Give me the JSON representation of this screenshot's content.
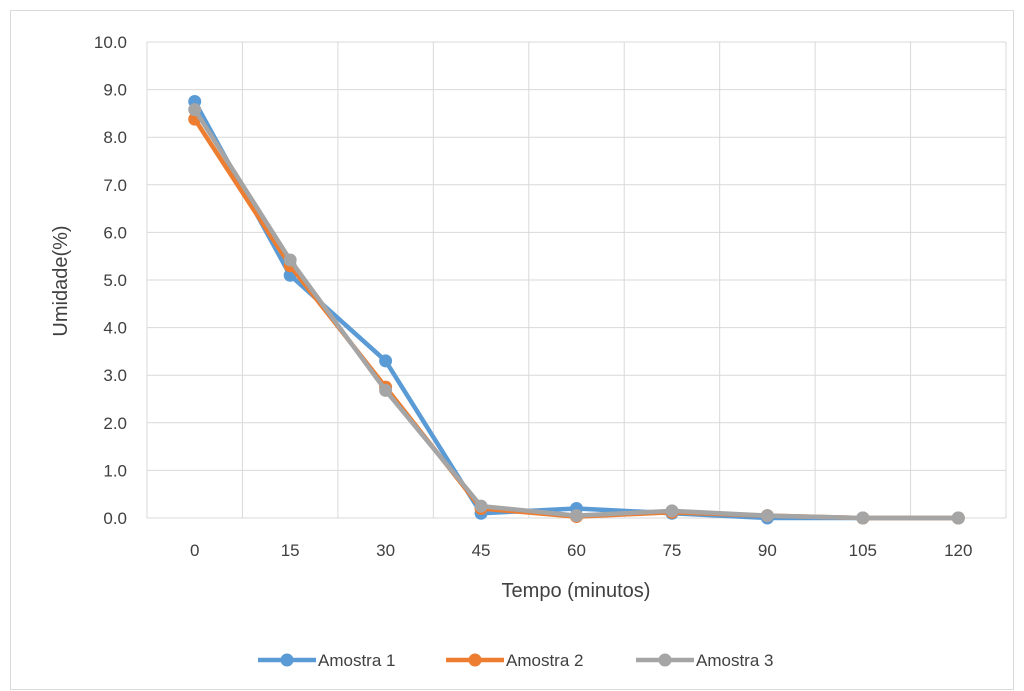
{
  "chart_data": {
    "type": "line",
    "title": "",
    "xlabel": "Tempo (minutos)",
    "ylabel": "Umidade(%)",
    "categories": [
      "0",
      "15",
      "30",
      "45",
      "60",
      "75",
      "90",
      "105",
      "120"
    ],
    "ylim": [
      0,
      10
    ],
    "y_tick_step": 1,
    "y_tick_format": "0.0",
    "grid": true,
    "legend_position": "bottom",
    "series": [
      {
        "name": "Amostra 1",
        "color": "#5b9bd5",
        "values": [
          8.75,
          5.1,
          3.3,
          0.1,
          0.2,
          0.1,
          0.0,
          0.0,
          0.0
        ]
      },
      {
        "name": "Amostra 2",
        "color": "#ed7d31",
        "values": [
          8.38,
          5.3,
          2.75,
          0.2,
          0.03,
          0.12,
          0.05,
          0.0,
          0.0
        ]
      },
      {
        "name": "Amostra 3",
        "color": "#a5a5a5",
        "values": [
          8.58,
          5.42,
          2.68,
          0.25,
          0.05,
          0.15,
          0.05,
          0.0,
          0.0
        ]
      }
    ]
  }
}
